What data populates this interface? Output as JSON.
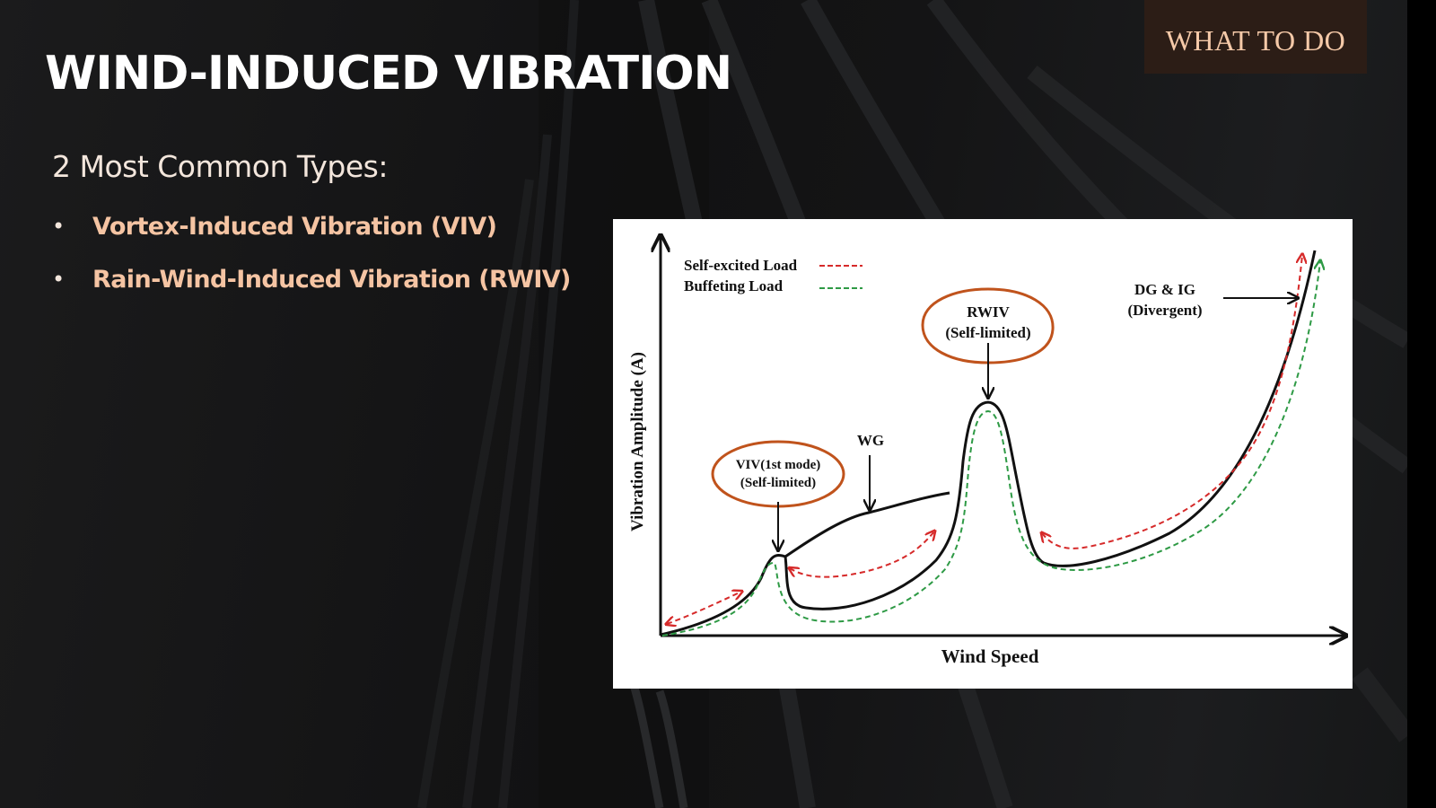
{
  "slide": {
    "title": "WIND-INDUCED VIBRATION",
    "badge": "WHAT TO DO",
    "subtitle": "2 Most Common Types:",
    "bullets": [
      "Vortex-Induced Vibration (VIV)",
      "Rain-Wind-Induced Vibration (RWIV)"
    ],
    "bullet_glyph": "•"
  },
  "figure": {
    "y_axis_label": "Vibration Amplitude (A)",
    "x_axis_label": "Wind Speed",
    "legend": [
      {
        "label": "Self-excited Load",
        "color": "#d62a2a"
      },
      {
        "label": "Buffeting Load",
        "color": "#2e9a45"
      }
    ],
    "annotations": {
      "viv_line1": "VIV(1st mode)",
      "viv_line2": "(Self-limited)",
      "wg": "WG",
      "rwiv_line1": "RWIV",
      "rwiv_line2": "(Self-limited)",
      "dg_line1": "DG & IG",
      "dg_line2": "(Divergent)"
    },
    "colors": {
      "response_curve": "#111111",
      "highlight_ellipse": "#c0531c",
      "self_excited": "#d62a2a",
      "buffeting": "#2e9a45"
    }
  },
  "colors": {
    "title": "#ffffff",
    "accent_text": "#f5c4a3",
    "badge_bg": "#2c1d16",
    "background": "#141415"
  }
}
